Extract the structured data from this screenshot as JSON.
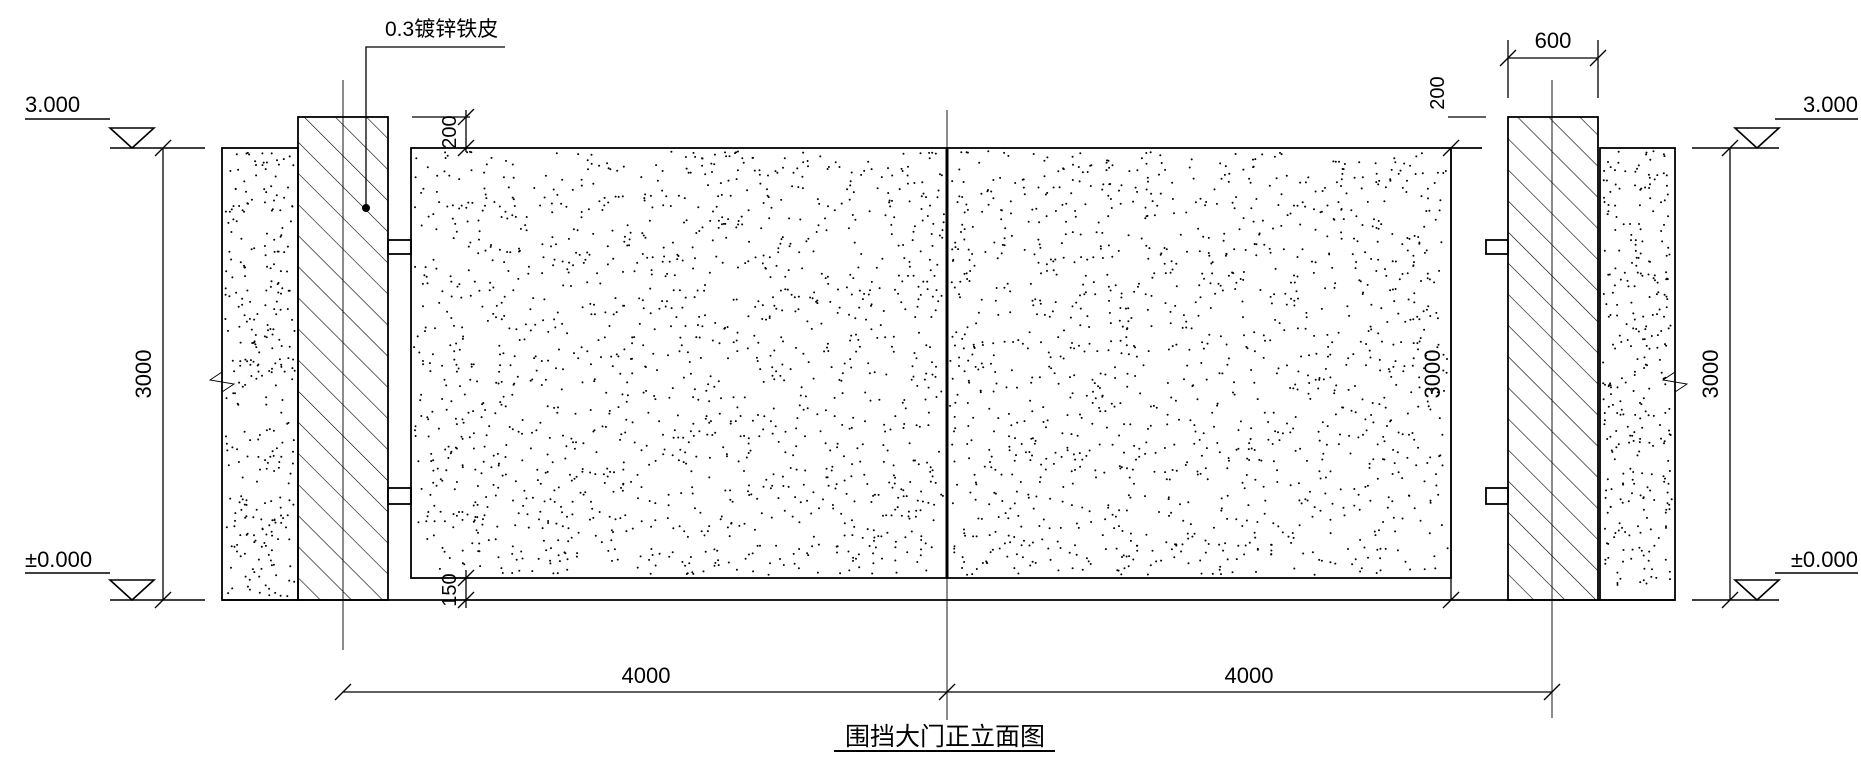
{
  "drawing": {
    "title": "围挡大门正立面图",
    "material_note": "0.3镀锌铁皮",
    "elevations": {
      "top_left": "3.000",
      "top_right": "3.000",
      "bottom_left": "±0.000",
      "bottom_right": "±0.000"
    },
    "dimensions": {
      "fence_height_left": "3000",
      "fence_height_right": "3000",
      "gate_height": "3000",
      "top_gap": "200",
      "top_gap_right": "200",
      "bottom_gap": "150",
      "pillar_width": "600",
      "gate_leaf_left": "4000",
      "gate_leaf_right": "4000"
    },
    "colors": {
      "line": "#000000",
      "background": "#ffffff"
    }
  }
}
